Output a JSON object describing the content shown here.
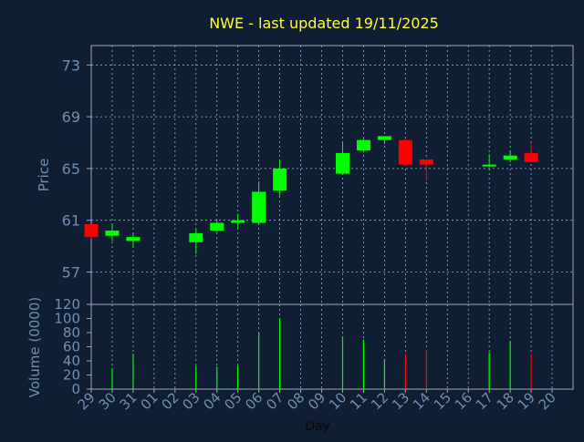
{
  "chart_data": {
    "type": "candlestick",
    "title": "NWE - last updated 19/11/2025",
    "price_panel": {
      "ylabel": "Price",
      "ylim": [
        54.5,
        74.5
      ],
      "yticks": [
        57,
        61,
        65,
        69,
        73
      ]
    },
    "volume_panel": {
      "ylabel": "Volume (0000)",
      "ylim": [
        0,
        120
      ],
      "yticks": [
        0,
        20,
        40,
        60,
        80,
        100,
        120
      ]
    },
    "xlabel": "Day",
    "x_ticks": [
      "29",
      "30",
      "31",
      "01",
      "02",
      "03",
      "04",
      "05",
      "06",
      "07",
      "08",
      "09",
      "10",
      "11",
      "12",
      "13",
      "14",
      "15",
      "16",
      "17",
      "18",
      "19",
      "20"
    ],
    "grid": true,
    "colors": {
      "background": "#0f1e33",
      "title": "#ffff33",
      "axis_text": "#6f8fb5",
      "grid": "#9fb0c8",
      "frame": "#a0a8b8",
      "up": "#00ff00",
      "down": "#ff0000"
    },
    "candles": [
      {
        "x": 0,
        "open": 60.7,
        "high": 60.7,
        "low": 59.6,
        "close": 59.7
      },
      {
        "x": 1,
        "open": 59.8,
        "high": 60.7,
        "low": 59.4,
        "close": 60.2
      },
      {
        "x": 2,
        "open": 59.4,
        "high": 60.0,
        "low": 58.9,
        "close": 59.7
      },
      {
        "x": 5,
        "open": 59.3,
        "high": 60.3,
        "low": 58.4,
        "close": 60.0
      },
      {
        "x": 6,
        "open": 60.2,
        "high": 61.0,
        "low": 60.1,
        "close": 60.8
      },
      {
        "x": 7,
        "open": 60.8,
        "high": 61.5,
        "low": 60.4,
        "close": 61.0
      },
      {
        "x": 8,
        "open": 60.8,
        "high": 64.0,
        "low": 60.7,
        "close": 63.2
      },
      {
        "x": 9,
        "open": 63.3,
        "high": 65.7,
        "low": 62.9,
        "close": 65.0
      },
      {
        "x": 12,
        "open": 64.6,
        "high": 67.1,
        "low": 64.6,
        "close": 66.2
      },
      {
        "x": 13,
        "open": 66.4,
        "high": 67.3,
        "low": 66.3,
        "close": 67.2
      },
      {
        "x": 14,
        "open": 67.2,
        "high": 67.5,
        "low": 66.9,
        "close": 67.5
      },
      {
        "x": 15,
        "open": 67.2,
        "high": 67.3,
        "low": 65.2,
        "close": 65.3
      },
      {
        "x": 16,
        "open": 65.7,
        "high": 65.7,
        "low": 64.0,
        "close": 65.3
      },
      {
        "x": 19,
        "open": 65.2,
        "high": 66.1,
        "low": 65.1,
        "close": 65.3
      },
      {
        "x": 20,
        "open": 65.7,
        "high": 66.4,
        "low": 65.5,
        "close": 66.0
      },
      {
        "x": 21,
        "open": 66.2,
        "high": 66.9,
        "low": 65.5,
        "close": 65.5
      }
    ],
    "volume": [
      {
        "x": 1,
        "value": 30,
        "dir": "up"
      },
      {
        "x": 2,
        "value": 50,
        "dir": "up"
      },
      {
        "x": 5,
        "value": 33,
        "dir": "up"
      },
      {
        "x": 6,
        "value": 32,
        "dir": "up"
      },
      {
        "x": 7,
        "value": 33,
        "dir": "up"
      },
      {
        "x": 8,
        "value": 80,
        "dir": "up"
      },
      {
        "x": 9,
        "value": 100,
        "dir": "up"
      },
      {
        "x": 12,
        "value": 74,
        "dir": "up"
      },
      {
        "x": 13,
        "value": 70,
        "dir": "up"
      },
      {
        "x": 14,
        "value": 42,
        "dir": "up"
      },
      {
        "x": 15,
        "value": 50,
        "dir": "down"
      },
      {
        "x": 16,
        "value": 55,
        "dir": "down"
      },
      {
        "x": 19,
        "value": 52,
        "dir": "up"
      },
      {
        "x": 20,
        "value": 68,
        "dir": "up"
      },
      {
        "x": 21,
        "value": 50,
        "dir": "down"
      }
    ]
  }
}
